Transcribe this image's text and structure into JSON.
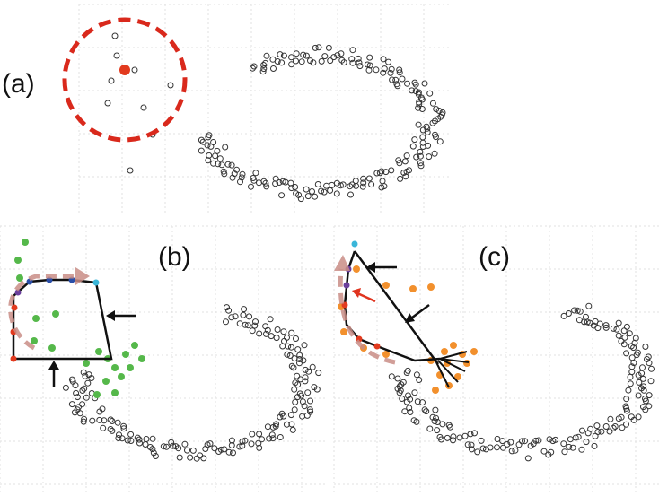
{
  "panels": [
    {
      "id": "a",
      "label": "(a)"
    },
    {
      "id": "b",
      "label": "(b)"
    },
    {
      "id": "c",
      "label": "(c)"
    }
  ],
  "colors": {
    "point_outline": "#333333",
    "selected_point": "#e23a1e",
    "neighborhood_circle": "#d9291c",
    "green_points": "#55b84a",
    "orange_points": "#f2902d",
    "path_arrow": "#c98d86",
    "polyline": "#111111",
    "red_arrow": "#e0341f",
    "blue_vertex": "#2a4ea8",
    "purple_vertex": "#6b3f9c",
    "cyan_vertex": "#3ab6d9",
    "grid": "#e2e2e2"
  },
  "icons": [
    "selected-point-marker",
    "neighborhood-circle",
    "direction-arrow",
    "curved-path-arrow"
  ]
}
